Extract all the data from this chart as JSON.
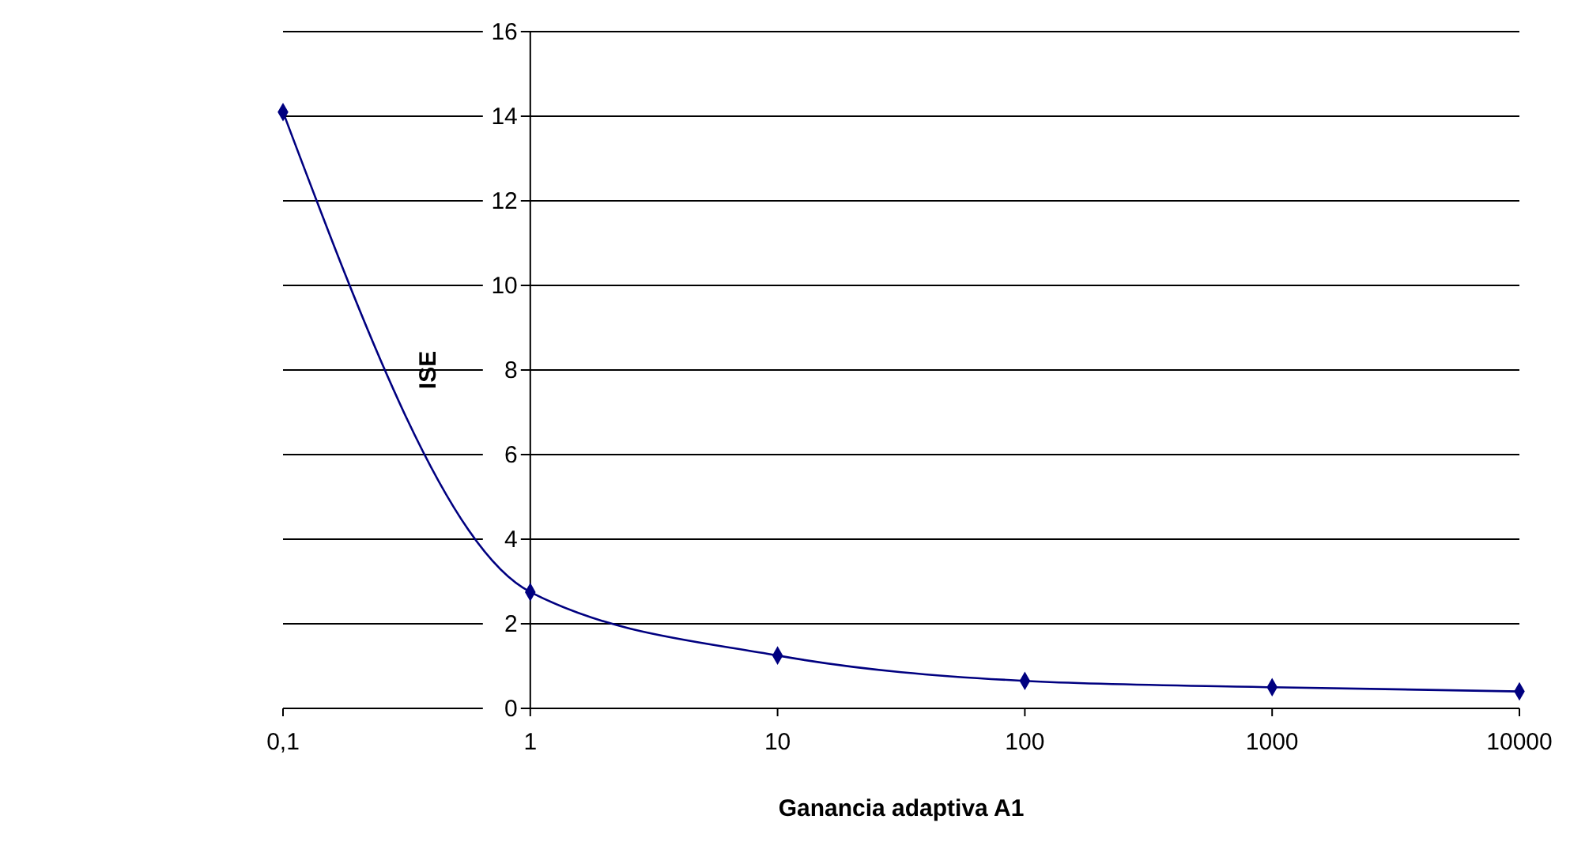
{
  "chart_data": {
    "type": "line",
    "xlabel": "Ganancia adaptiva A1",
    "ylabel": "ISE",
    "x": [
      0.1,
      1,
      10,
      100,
      1000,
      10000
    ],
    "series": [
      {
        "color": "#000080",
        "values": [
          14.1,
          2.75,
          1.25,
          0.65,
          0.5,
          0.4
        ]
      }
    ],
    "log": "x",
    "xlim": [
      0.1,
      10000
    ],
    "xticks": [
      {
        "value": 0.1,
        "label": "0,1"
      },
      1,
      10,
      100,
      1000,
      10000
    ],
    "ylim": [
      0,
      16
    ],
    "yticks": [
      0,
      2,
      4,
      6,
      8,
      10,
      12,
      14,
      16
    ],
    "grid": "y",
    "marker": "diamond",
    "line_style": "solid"
  }
}
